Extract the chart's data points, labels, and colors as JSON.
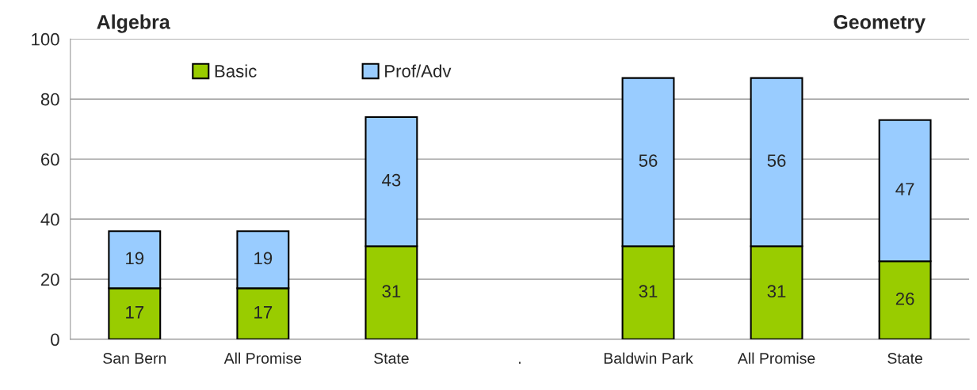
{
  "chart_data": {
    "type": "bar",
    "stacked": true,
    "categories": [
      "San Bern",
      "All Promise",
      "State",
      ".",
      "Baldwin Park",
      "All Promise",
      "State"
    ],
    "series": [
      {
        "name": "Basic",
        "color": "#99cc00",
        "values": [
          17,
          17,
          31,
          null,
          31,
          31,
          26
        ]
      },
      {
        "name": "Prof/Adv",
        "color": "#99ccff",
        "values": [
          19,
          19,
          43,
          null,
          56,
          56,
          47
        ]
      }
    ],
    "annotations": [
      "Algebra",
      "Geometry"
    ],
    "ylim": [
      0,
      100
    ],
    "yticks": [
      0,
      20,
      40,
      60,
      80,
      100
    ],
    "grid": "y",
    "legend": "top",
    "data_labels": true
  }
}
